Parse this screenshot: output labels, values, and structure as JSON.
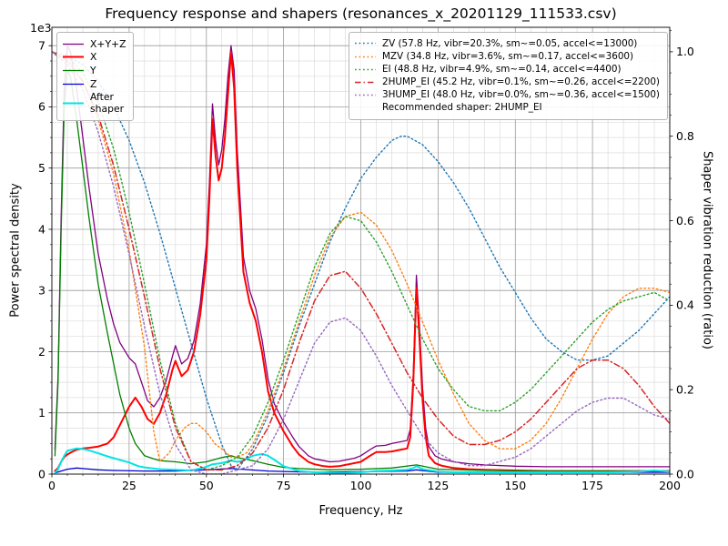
{
  "figure": {
    "title": "Frequency response and shapers (resonances_x_20201129_111533.csv)",
    "offset_text": "1e3",
    "xlabel": "Frequency, Hz",
    "ylabel_left": "Power spectral density",
    "ylabel_right": "Shaper vibration reduction (ratio)"
  },
  "chart_data": {
    "type": "line",
    "title": "Frequency response and shapers (resonances_x_20201129_111533.csv)",
    "xlabel": "Frequency, Hz",
    "ylabel_left": "Power spectral density",
    "ylabel_right": "Shaper vibration reduction (ratio)",
    "y_left_unit": "1e3",
    "xlim": [
      0,
      200
    ],
    "ylim_left": [
      0,
      7.3
    ],
    "ylim_right": [
      0,
      1.058
    ],
    "x_ticks": [
      0,
      25,
      50,
      75,
      100,
      125,
      150,
      175,
      200
    ],
    "y_ticks_left": [
      0,
      1,
      2,
      3,
      4,
      5,
      6,
      7
    ],
    "y_ticks_right": [
      0.0,
      0.2,
      0.4,
      0.6,
      0.8,
      1.0
    ],
    "grid": "both",
    "recommended_note": "Recommended shaper: 2HUMP_EI",
    "series": [
      {
        "name": "X+Y+Z",
        "legend": "psd",
        "axis": "left",
        "color": "#800080",
        "style": "solid",
        "width": 1.3,
        "x": [
          1,
          2,
          3,
          4,
          5,
          6,
          8,
          10,
          12,
          15,
          18,
          20,
          22,
          25,
          27,
          29,
          31,
          33,
          35,
          37,
          39,
          40,
          42,
          44,
          46,
          48,
          50,
          51,
          52,
          53,
          54,
          55,
          56,
          57,
          58,
          59,
          60,
          62,
          64,
          66,
          68,
          70,
          72,
          75,
          78,
          80,
          83,
          85,
          88,
          90,
          93,
          95,
          98,
          100,
          103,
          105,
          108,
          110,
          113,
          115,
          116,
          117,
          118,
          119,
          120,
          121,
          122,
          124,
          126,
          130,
          135,
          140,
          150,
          160,
          170,
          180,
          190,
          200
        ],
        "y": [
          0.4,
          1.6,
          4.2,
          6.3,
          7.0,
          6.9,
          6.3,
          5.5,
          4.7,
          3.6,
          2.85,
          2.45,
          2.15,
          1.9,
          1.8,
          1.5,
          1.2,
          1.1,
          1.25,
          1.53,
          1.92,
          2.1,
          1.8,
          1.89,
          2.18,
          2.78,
          3.75,
          4.75,
          6.05,
          5.45,
          5.05,
          5.3,
          5.8,
          6.5,
          7.0,
          6.6,
          5.3,
          3.55,
          3.0,
          2.7,
          2.2,
          1.55,
          1.15,
          0.85,
          0.6,
          0.45,
          0.3,
          0.25,
          0.22,
          0.2,
          0.21,
          0.23,
          0.26,
          0.3,
          0.4,
          0.46,
          0.47,
          0.5,
          0.53,
          0.55,
          0.73,
          1.65,
          3.25,
          2.4,
          1.4,
          0.75,
          0.45,
          0.3,
          0.25,
          0.2,
          0.17,
          0.15,
          0.13,
          0.12,
          0.12,
          0.12,
          0.12,
          0.12
        ]
      },
      {
        "name": "X",
        "legend": "psd",
        "axis": "left",
        "color": "#ff0000",
        "style": "solid",
        "width": 2.0,
        "x": [
          1,
          2,
          3,
          4,
          5,
          6,
          8,
          10,
          12,
          15,
          18,
          20,
          22,
          25,
          27,
          29,
          31,
          33,
          35,
          37,
          39,
          40,
          42,
          44,
          46,
          48,
          50,
          51,
          52,
          53,
          54,
          55,
          56,
          57,
          58,
          59,
          60,
          62,
          64,
          66,
          68,
          70,
          72,
          75,
          78,
          80,
          83,
          85,
          88,
          90,
          93,
          95,
          98,
          100,
          103,
          105,
          108,
          110,
          113,
          115,
          116,
          117,
          118,
          119,
          120,
          121,
          122,
          124,
          126,
          130,
          135,
          140,
          150,
          160,
          170,
          180,
          190,
          200
        ],
        "y": [
          0.05,
          0.1,
          0.2,
          0.28,
          0.32,
          0.35,
          0.4,
          0.42,
          0.43,
          0.45,
          0.5,
          0.6,
          0.8,
          1.1,
          1.25,
          1.1,
          0.9,
          0.82,
          1.0,
          1.3,
          1.7,
          1.85,
          1.6,
          1.7,
          2.0,
          2.6,
          3.5,
          4.5,
          5.8,
          5.2,
          4.8,
          5.0,
          5.5,
          6.2,
          6.9,
          6.3,
          5.0,
          3.3,
          2.8,
          2.5,
          2.0,
          1.35,
          1.0,
          0.7,
          0.45,
          0.32,
          0.2,
          0.16,
          0.13,
          0.12,
          0.13,
          0.15,
          0.18,
          0.2,
          0.3,
          0.36,
          0.36,
          0.37,
          0.4,
          0.42,
          0.6,
          1.5,
          3.05,
          2.2,
          1.2,
          0.6,
          0.3,
          0.18,
          0.14,
          0.1,
          0.08,
          0.07,
          0.06,
          0.05,
          0.05,
          0.05,
          0.05,
          0.05
        ]
      },
      {
        "name": "Y",
        "legend": "psd",
        "axis": "left",
        "color": "#008000",
        "style": "solid",
        "width": 1.3,
        "x": [
          1,
          2,
          3,
          4,
          5,
          6,
          8,
          10,
          12,
          15,
          18,
          20,
          22,
          25,
          27,
          30,
          33,
          35,
          40,
          45,
          50,
          55,
          58,
          60,
          65,
          70,
          75,
          80,
          90,
          100,
          110,
          118,
          125,
          140,
          160,
          180,
          200
        ],
        "y": [
          0.3,
          1.5,
          4.0,
          6.0,
          6.6,
          6.5,
          5.8,
          5.0,
          4.2,
          3.1,
          2.3,
          1.8,
          1.3,
          0.75,
          0.5,
          0.3,
          0.25,
          0.22,
          0.2,
          0.17,
          0.2,
          0.27,
          0.3,
          0.27,
          0.22,
          0.16,
          0.11,
          0.09,
          0.07,
          0.08,
          0.1,
          0.15,
          0.08,
          0.06,
          0.05,
          0.05,
          0.05
        ]
      },
      {
        "name": "Z",
        "legend": "psd",
        "axis": "left",
        "color": "#0000cd",
        "style": "solid",
        "width": 1.3,
        "x": [
          1,
          3,
          5,
          8,
          10,
          15,
          20,
          30,
          40,
          50,
          58,
          70,
          85,
          100,
          115,
          118,
          125,
          140,
          160,
          180,
          200
        ],
        "y": [
          0.02,
          0.05,
          0.08,
          0.1,
          0.09,
          0.07,
          0.06,
          0.05,
          0.05,
          0.07,
          0.09,
          0.05,
          0.03,
          0.04,
          0.05,
          0.07,
          0.03,
          0.03,
          0.03,
          0.03,
          0.03
        ]
      },
      {
        "name": "After\nshaper",
        "legend": "psd",
        "axis": "left",
        "color": "#00e5e5",
        "style": "solid",
        "width": 2.0,
        "x": [
          1,
          2,
          3,
          4,
          5,
          8,
          10,
          12,
          15,
          18,
          20,
          25,
          28,
          30,
          33,
          35,
          40,
          45,
          48,
          50,
          52,
          55,
          58,
          60,
          62,
          65,
          68,
          70,
          73,
          75,
          80,
          85,
          90,
          95,
          100,
          105,
          110,
          115,
          117,
          118,
          120,
          125,
          130,
          140,
          150,
          160,
          170,
          180,
          190,
          195,
          200
        ],
        "y": [
          0.02,
          0.08,
          0.2,
          0.3,
          0.38,
          0.42,
          0.41,
          0.39,
          0.34,
          0.29,
          0.26,
          0.19,
          0.13,
          0.11,
          0.09,
          0.08,
          0.07,
          0.06,
          0.09,
          0.12,
          0.16,
          0.18,
          0.22,
          0.2,
          0.22,
          0.3,
          0.33,
          0.3,
          0.2,
          0.13,
          0.05,
          0.03,
          0.02,
          0.02,
          0.03,
          0.05,
          0.06,
          0.07,
          0.1,
          0.13,
          0.08,
          0.04,
          0.03,
          0.03,
          0.03,
          0.03,
          0.03,
          0.03,
          0.04,
          0.06,
          0.04
        ]
      },
      {
        "name": "ZV",
        "legend": "shaper",
        "axis": "right",
        "color": "#1f77b4",
        "style": "dotted",
        "width": 1.4,
        "label": "ZV (57.8 Hz, vibr=20.3%, sm~=0.05, accel<=13000)",
        "x": [
          0,
          5,
          10,
          15,
          20,
          25,
          30,
          35,
          40,
          45,
          50,
          55,
          58,
          60,
          65,
          70,
          75,
          80,
          85,
          90,
          95,
          100,
          105,
          110,
          113,
          115,
          120,
          125,
          130,
          135,
          140,
          145,
          150,
          155,
          160,
          165,
          170,
          173,
          175,
          180,
          185,
          190,
          195,
          200
        ],
        "y": [
          1.0,
          0.99,
          0.97,
          0.93,
          0.87,
          0.79,
          0.69,
          0.57,
          0.44,
          0.31,
          0.18,
          0.07,
          0.02,
          0.01,
          0.06,
          0.14,
          0.24,
          0.35,
          0.45,
          0.55,
          0.63,
          0.7,
          0.75,
          0.79,
          0.8,
          0.8,
          0.78,
          0.74,
          0.69,
          0.63,
          0.56,
          0.49,
          0.43,
          0.37,
          0.32,
          0.29,
          0.27,
          0.27,
          0.27,
          0.28,
          0.31,
          0.34,
          0.38,
          0.42
        ]
      },
      {
        "name": "MZV",
        "legend": "shaper",
        "axis": "right",
        "color": "#ff7f0e",
        "style": "dotted",
        "width": 1.4,
        "label": "MZV (34.8 Hz, vibr=3.6%, sm~=0.17, accel<=3600)",
        "x": [
          0,
          5,
          10,
          15,
          20,
          25,
          30,
          33,
          35,
          38,
          40,
          43,
          45,
          47,
          50,
          53,
          55,
          58,
          60,
          63,
          65,
          70,
          75,
          80,
          85,
          90,
          95,
          100,
          105,
          110,
          115,
          120,
          125,
          130,
          135,
          140,
          145,
          150,
          155,
          160,
          165,
          170,
          175,
          180,
          185,
          190,
          195,
          200
        ],
        "y": [
          1.0,
          0.98,
          0.93,
          0.84,
          0.71,
          0.53,
          0.3,
          0.1,
          0.03,
          0.05,
          0.08,
          0.11,
          0.12,
          0.12,
          0.1,
          0.07,
          0.06,
          0.04,
          0.04,
          0.05,
          0.07,
          0.15,
          0.25,
          0.36,
          0.47,
          0.56,
          0.61,
          0.62,
          0.59,
          0.53,
          0.45,
          0.36,
          0.27,
          0.19,
          0.12,
          0.08,
          0.06,
          0.06,
          0.08,
          0.12,
          0.18,
          0.25,
          0.32,
          0.38,
          0.42,
          0.44,
          0.44,
          0.43
        ]
      },
      {
        "name": "EI",
        "legend": "shaper",
        "axis": "right",
        "color": "#2ca02c",
        "style": "dotted",
        "width": 1.4,
        "label": "EI (48.8 Hz, vibr=4.9%, sm~=0.14, accel<=4400)",
        "x": [
          0,
          5,
          10,
          15,
          20,
          25,
          30,
          35,
          40,
          45,
          50,
          55,
          60,
          65,
          70,
          75,
          80,
          85,
          90,
          95,
          100,
          105,
          110,
          115,
          120,
          125,
          130,
          135,
          140,
          145,
          150,
          155,
          160,
          165,
          170,
          175,
          180,
          185,
          190,
          195,
          200
        ],
        "y": [
          1.0,
          0.99,
          0.95,
          0.88,
          0.77,
          0.62,
          0.45,
          0.27,
          0.12,
          0.03,
          0.01,
          0.02,
          0.04,
          0.09,
          0.17,
          0.27,
          0.38,
          0.49,
          0.57,
          0.61,
          0.6,
          0.55,
          0.48,
          0.4,
          0.32,
          0.25,
          0.2,
          0.16,
          0.15,
          0.15,
          0.17,
          0.2,
          0.24,
          0.28,
          0.32,
          0.36,
          0.39,
          0.41,
          0.42,
          0.43,
          0.41
        ]
      },
      {
        "name": "2HUMP_EI",
        "legend": "shaper",
        "axis": "right",
        "color": "#d62728",
        "style": "dashdot",
        "width": 1.5,
        "label": "2HUMP_EI (45.2 Hz, vibr=0.1%, sm~=0.26, accel<=2200)",
        "x": [
          0,
          5,
          10,
          15,
          20,
          25,
          30,
          35,
          40,
          45,
          50,
          55,
          60,
          65,
          70,
          75,
          80,
          85,
          90,
          95,
          100,
          105,
          110,
          115,
          120,
          125,
          130,
          135,
          140,
          145,
          150,
          155,
          160,
          165,
          170,
          175,
          180,
          185,
          190,
          195,
          200
        ],
        "y": [
          1.0,
          0.98,
          0.93,
          0.85,
          0.73,
          0.58,
          0.42,
          0.25,
          0.11,
          0.03,
          0.01,
          0.01,
          0.02,
          0.05,
          0.11,
          0.2,
          0.31,
          0.41,
          0.47,
          0.48,
          0.44,
          0.38,
          0.31,
          0.24,
          0.18,
          0.13,
          0.09,
          0.07,
          0.07,
          0.08,
          0.1,
          0.13,
          0.17,
          0.21,
          0.25,
          0.27,
          0.27,
          0.25,
          0.21,
          0.16,
          0.12
        ]
      },
      {
        "name": "3HUMP_EI",
        "legend": "shaper",
        "axis": "right",
        "color": "#9467bd",
        "style": "dotted",
        "width": 1.4,
        "label": "3HUMP_EI (48.0 Hz, vibr=0.0%, sm~=0.36, accel<=1500)",
        "x": [
          0,
          5,
          10,
          15,
          20,
          25,
          30,
          35,
          40,
          45,
          50,
          55,
          60,
          65,
          70,
          75,
          80,
          85,
          90,
          95,
          100,
          105,
          110,
          115,
          120,
          125,
          130,
          135,
          140,
          145,
          150,
          155,
          160,
          165,
          170,
          175,
          180,
          185,
          190,
          195,
          200
        ],
        "y": [
          1.0,
          0.97,
          0.91,
          0.81,
          0.68,
          0.52,
          0.35,
          0.19,
          0.07,
          0.01,
          0.0,
          0.0,
          0.01,
          0.02,
          0.06,
          0.13,
          0.22,
          0.31,
          0.36,
          0.37,
          0.34,
          0.28,
          0.21,
          0.15,
          0.09,
          0.05,
          0.03,
          0.02,
          0.02,
          0.03,
          0.04,
          0.06,
          0.09,
          0.12,
          0.15,
          0.17,
          0.18,
          0.18,
          0.16,
          0.14,
          0.13
        ]
      }
    ]
  }
}
